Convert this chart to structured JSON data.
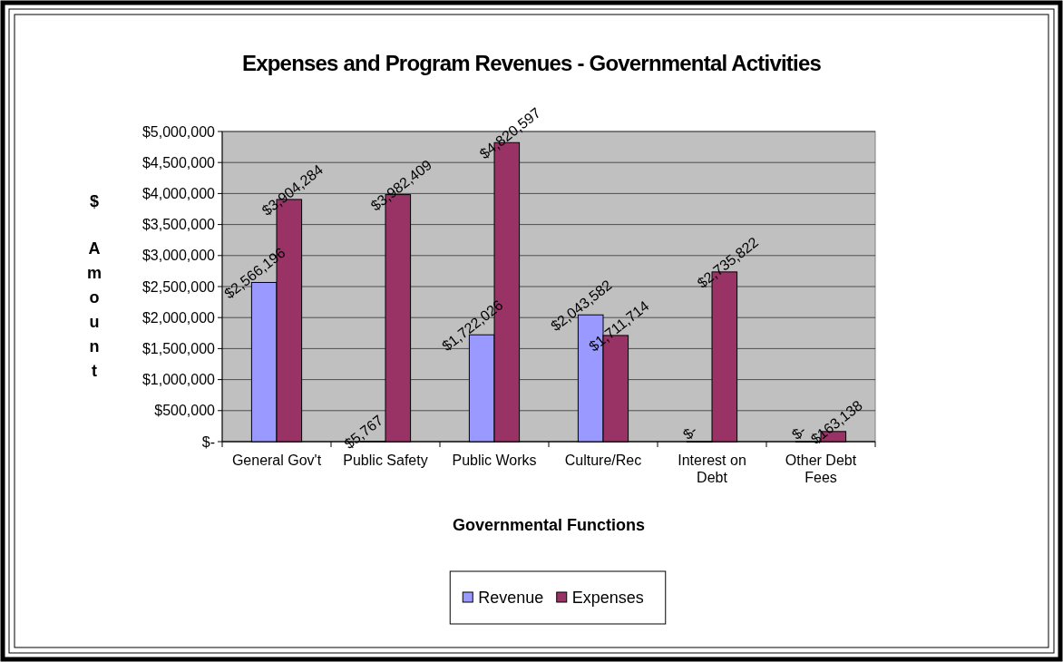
{
  "chart_data": {
    "type": "bar",
    "title": "Expenses and Program Revenues - Governmental Activities",
    "xlabel": "Governmental Functions",
    "ylabel": "$ Amount",
    "categories": [
      "General Gov't",
      "Public Safety",
      "Public Works",
      "Culture/Rec",
      "Interest on Debt",
      "Other Debt Fees"
    ],
    "series": [
      {
        "name": "Revenue",
        "color": "#9999ff",
        "values": [
          2566196,
          5767,
          1722026,
          2043582,
          0,
          0
        ],
        "value_labels": [
          "$2,566,196",
          "$5,767",
          "$1,722,026",
          "$2,043,582",
          "$-",
          "$-"
        ]
      },
      {
        "name": "Expenses",
        "color": "#993366",
        "values": [
          3904284,
          3982409,
          4820597,
          1711714,
          2735822,
          163138
        ],
        "value_labels": [
          "$3,904,284",
          "$3,982,409",
          "$4,820,597",
          "$1,711,714",
          "$2,735,822",
          "$163,138"
        ]
      }
    ],
    "ylim": [
      0,
      5000000
    ],
    "yticks": [
      {
        "value": 0,
        "label": "$-"
      },
      {
        "value": 500000,
        "label": "$500,000"
      },
      {
        "value": 1000000,
        "label": "$1,000,000"
      },
      {
        "value": 1500000,
        "label": "$1,500,000"
      },
      {
        "value": 2000000,
        "label": "$2,000,000"
      },
      {
        "value": 2500000,
        "label": "$2,500,000"
      },
      {
        "value": 3000000,
        "label": "$3,000,000"
      },
      {
        "value": 3500000,
        "label": "$3,500,000"
      },
      {
        "value": 4000000,
        "label": "$4,000,000"
      },
      {
        "value": 4500000,
        "label": "$4,500,000"
      },
      {
        "value": 5000000,
        "label": "$5,000,000"
      }
    ],
    "grid": "y",
    "legend": "bottom"
  }
}
